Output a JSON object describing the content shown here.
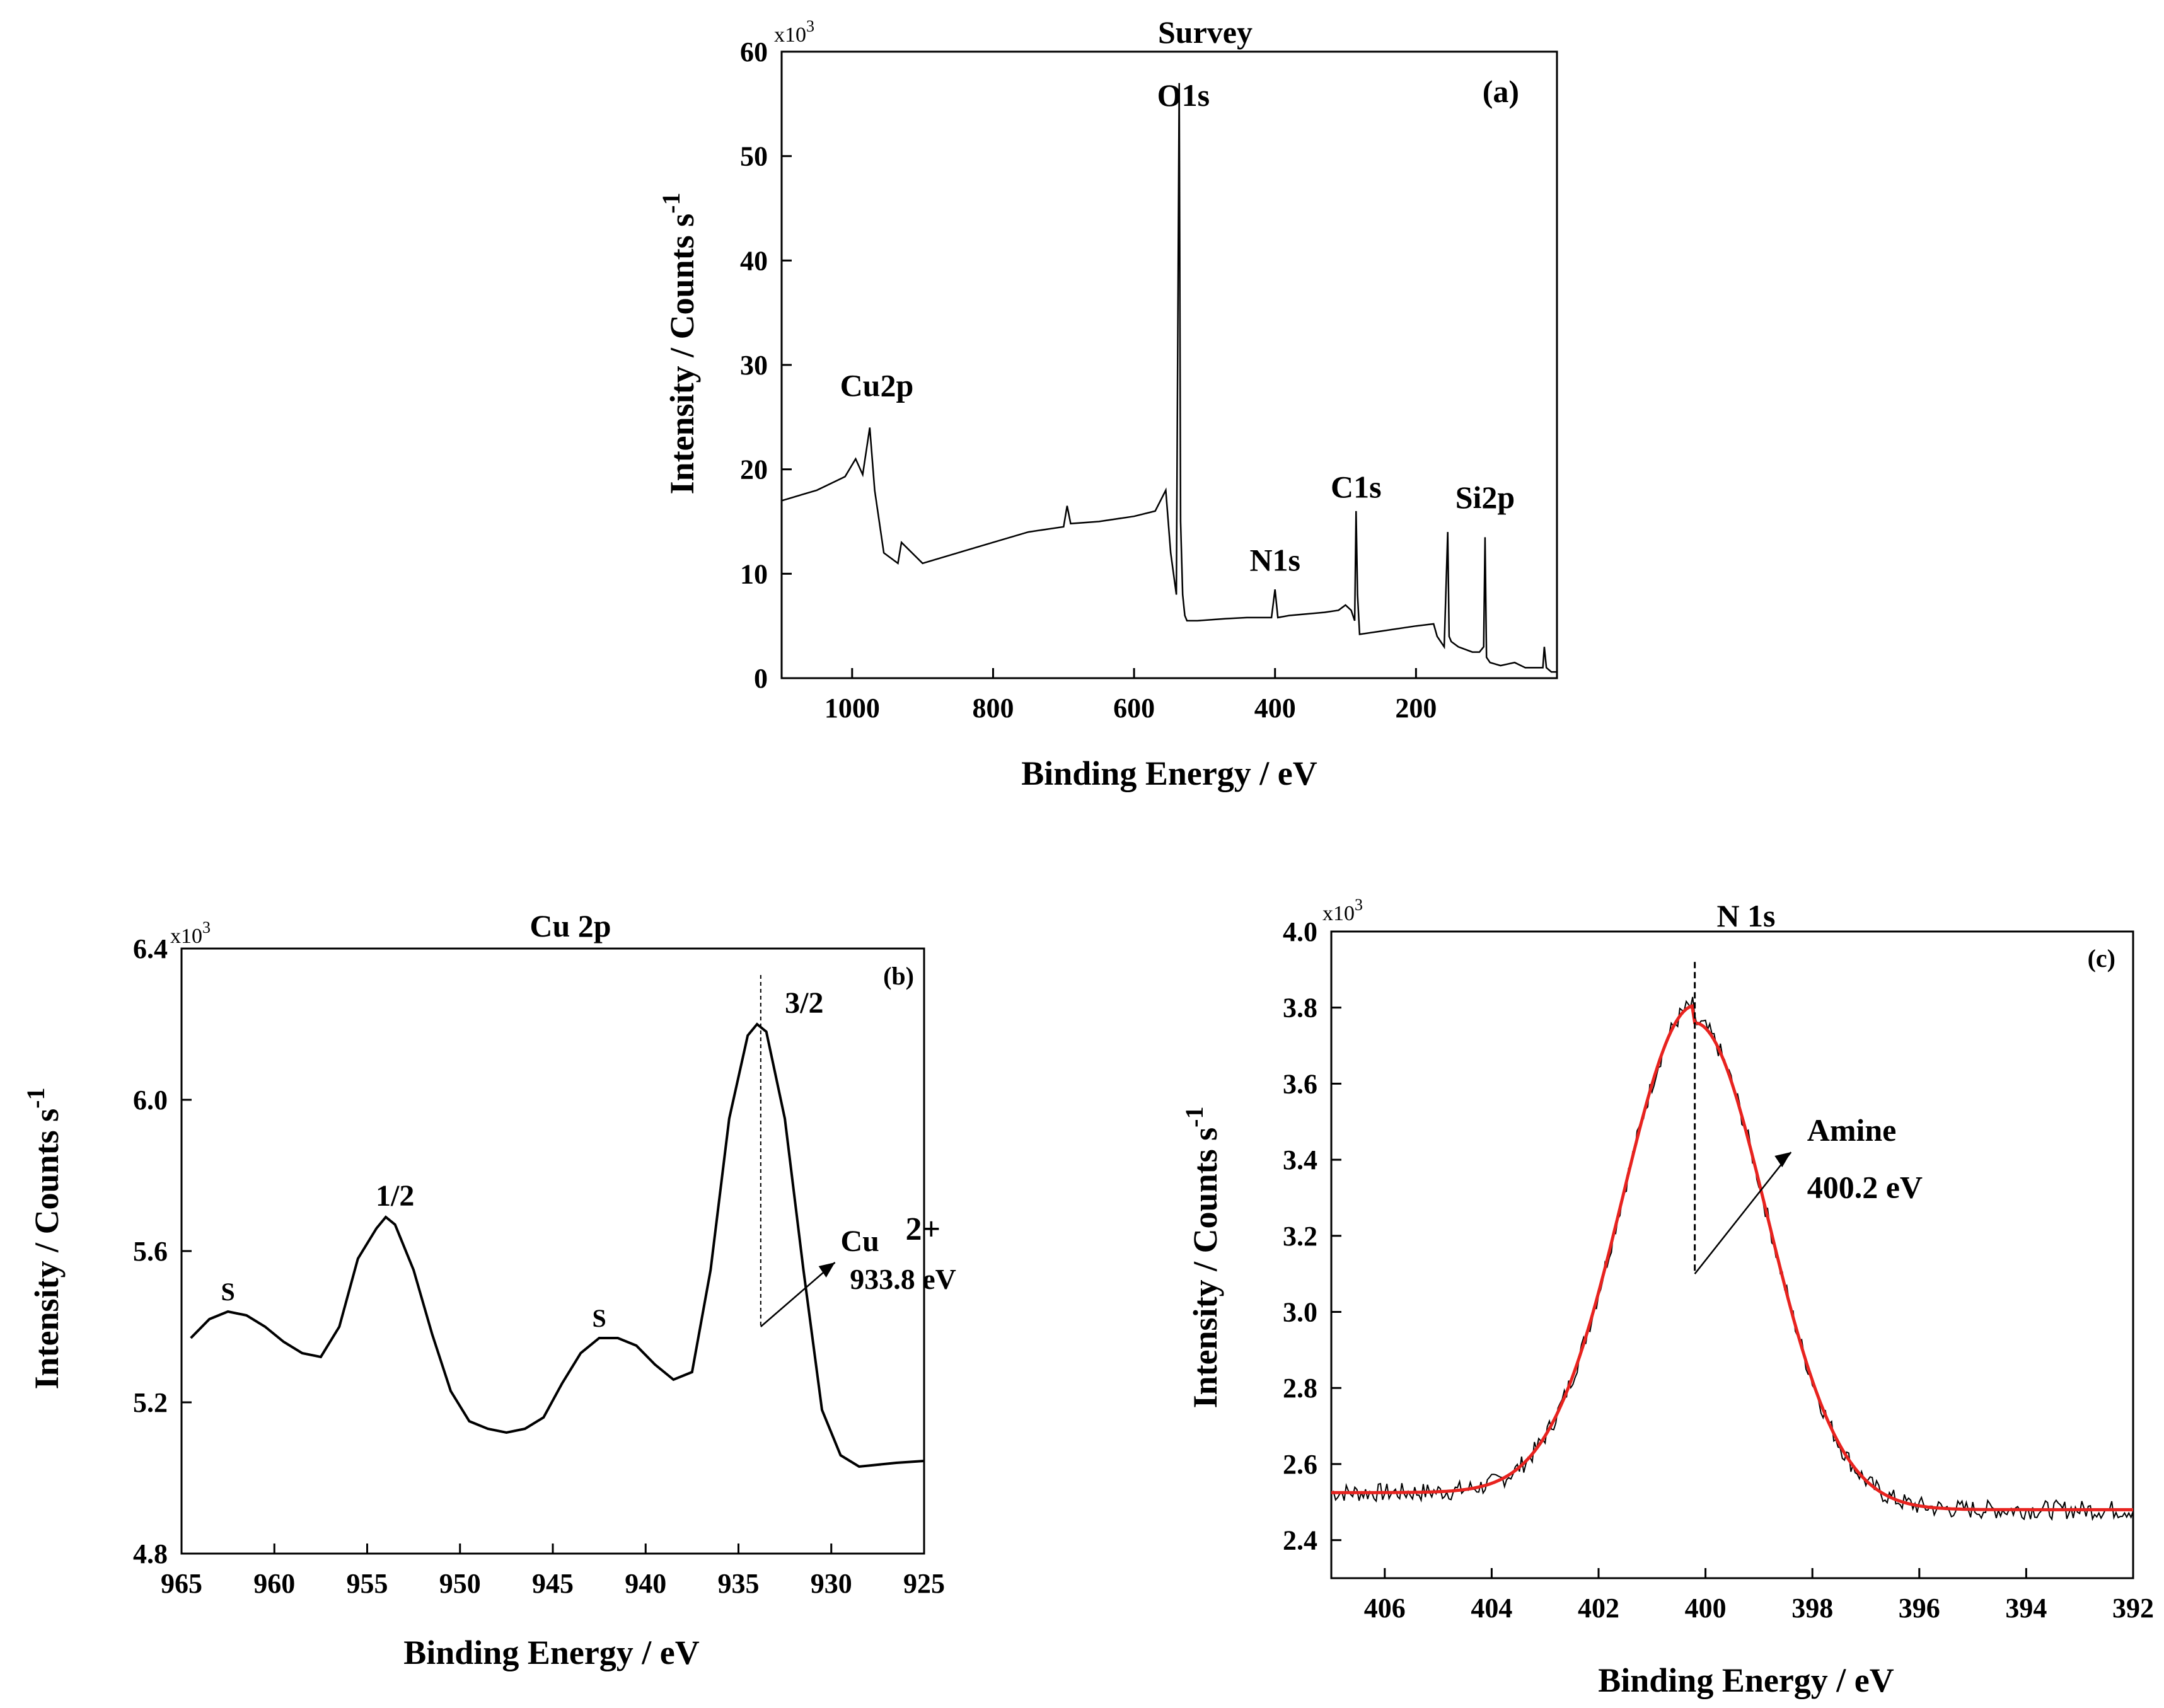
{
  "chart_data": [
    {
      "id": "a",
      "type": "line",
      "title": "Survey",
      "panel_label": "(a)",
      "xlabel": "Binding Energy / eV",
      "ylabel": "Intensity / Counts s",
      "ylabel_sup": "-1",
      "multiplier": "x10",
      "multiplier_exp": "3",
      "xlim": [
        1100,
        0
      ],
      "ylim": [
        0,
        60
      ],
      "xticks": [
        1000,
        800,
        600,
        400,
        200
      ],
      "yticks": [
        0,
        10,
        20,
        30,
        40,
        50,
        60
      ],
      "series": [
        {
          "name": "survey",
          "color": "#000000",
          "x": [
            1100,
            1050,
            1010,
            995,
            985,
            975,
            968,
            955,
            945,
            935,
            930,
            900,
            850,
            800,
            750,
            700,
            695,
            690,
            650,
            600,
            570,
            555,
            548,
            540,
            536,
            534,
            531,
            528,
            525,
            510,
            470,
            440,
            405,
            400,
            396,
            380,
            330,
            310,
            300,
            292,
            287,
            285,
            283,
            280,
            250,
            200,
            175,
            170,
            160,
            155,
            153,
            150,
            140,
            120,
            110,
            104,
            102,
            100,
            95,
            80,
            60,
            45,
            30,
            20,
            18,
            15,
            8,
            0
          ],
          "y": [
            17,
            18,
            19.3,
            21,
            19.5,
            24,
            18,
            12,
            11.5,
            11,
            13,
            11,
            12,
            13,
            14,
            14.5,
            16.5,
            14.8,
            15,
            15.5,
            16,
            18,
            12,
            8,
            57,
            15,
            8,
            6,
            5.5,
            5.5,
            5.7,
            5.8,
            5.8,
            8.5,
            5.8,
            6,
            6.3,
            6.5,
            7,
            6.5,
            5.5,
            16,
            8,
            4.2,
            4.5,
            5,
            5.2,
            4,
            3,
            14,
            4,
            3.5,
            3,
            2.5,
            2.5,
            3,
            13.5,
            2,
            1.5,
            1.2,
            1.5,
            1,
            1,
            1,
            3,
            1,
            0.6,
            0.6
          ]
        }
      ],
      "annotations": [
        {
          "text": "Cu2p",
          "x": 965,
          "y": 27
        },
        {
          "text": "O1s",
          "x": 530,
          "y": 54.8
        },
        {
          "text": "N1s",
          "x": 400,
          "y": 10.3
        },
        {
          "text": "C1s",
          "x": 285,
          "y": 17.3
        },
        {
          "text": "Si2p",
          "x": 102,
          "y": 16.3
        }
      ]
    },
    {
      "id": "b",
      "type": "line",
      "title": "Cu 2p",
      "panel_label": "(b)",
      "xlabel": "Binding Energy / eV",
      "ylabel": "Intensity / Counts s",
      "ylabel_sup": "-1",
      "multiplier": "x10",
      "multiplier_exp": "3",
      "xlim": [
        965,
        925
      ],
      "ylim": [
        4.8,
        6.4
      ],
      "xticks": [
        965,
        960,
        955,
        950,
        945,
        940,
        935,
        930,
        925
      ],
      "yticks": [
        4.8,
        5.2,
        5.6,
        6.0,
        6.4
      ],
      "series": [
        {
          "name": "Cu 2p",
          "color": "#000000",
          "x": [
            964.5,
            963.5,
            962.5,
            961.5,
            960.5,
            959.5,
            958.5,
            957.5,
            956.5,
            955.5,
            954.5,
            954,
            953.5,
            952.5,
            951.5,
            950.5,
            949.5,
            948.5,
            947.5,
            946.5,
            945.5,
            944.5,
            943.5,
            942.5,
            941.5,
            940.5,
            939.5,
            938.5,
            937.5,
            936.5,
            935.5,
            934.5,
            934,
            933.5,
            932.5,
            931.5,
            930.5,
            929.5,
            928.5,
            927.5,
            926.5,
            925
          ],
          "y": [
            5.37,
            5.42,
            5.44,
            5.43,
            5.4,
            5.36,
            5.33,
            5.32,
            5.4,
            5.58,
            5.66,
            5.69,
            5.67,
            5.55,
            5.38,
            5.23,
            5.15,
            5.13,
            5.12,
            5.13,
            5.16,
            5.25,
            5.33,
            5.37,
            5.37,
            5.35,
            5.3,
            5.26,
            5.28,
            5.55,
            5.95,
            6.17,
            6.2,
            6.18,
            5.95,
            5.55,
            5.18,
            5.06,
            5.03,
            5.035,
            5.04,
            5.045
          ]
        }
      ],
      "annotations": [
        {
          "text": "S",
          "x": 962.5,
          "y": 5.44
        },
        {
          "text": "1/2",
          "x": 953.5,
          "y": 5.69
        },
        {
          "text": "S",
          "x": 942.5,
          "y": 5.37
        },
        {
          "text": "3/2",
          "x": 932.5,
          "y": 6.2
        },
        {
          "text": "Cu",
          "x": 929.5,
          "y": 5.6
        },
        {
          "text": "2+",
          "x": 926,
          "y": 5.63
        },
        {
          "text": "933.8 eV",
          "x": 929,
          "y": 5.5
        }
      ]
    },
    {
      "id": "c",
      "type": "line",
      "title": "N 1s",
      "panel_label": "(c)",
      "xlabel": "Binding Energy / eV",
      "ylabel": "Intensity / Counts s",
      "ylabel_sup": "-1",
      "multiplier": "x10",
      "multiplier_exp": "3",
      "xlim": [
        407,
        392
      ],
      "ylim": [
        2.3,
        4.0
      ],
      "xticks": [
        406,
        404,
        402,
        400,
        398,
        396,
        394,
        392
      ],
      "yticks": [
        2.4,
        2.6,
        2.8,
        3.0,
        3.2,
        3.4,
        3.6,
        3.8,
        4.0
      ],
      "fit": {
        "name": "fit",
        "color": "#e8231f",
        "center": 400.2,
        "height": 1.28,
        "sigma": 1.35,
        "left_base": 2.525,
        "right_base": 2.48
      },
      "raw": {
        "name": "raw",
        "color": "#000000",
        "noise": 0.025
      },
      "annotations": [
        {
          "text": "Amine",
          "x": 398.1,
          "y": 3.45
        },
        {
          "text": "400.2 eV",
          "x": 398.1,
          "y": 3.3
        }
      ]
    }
  ]
}
